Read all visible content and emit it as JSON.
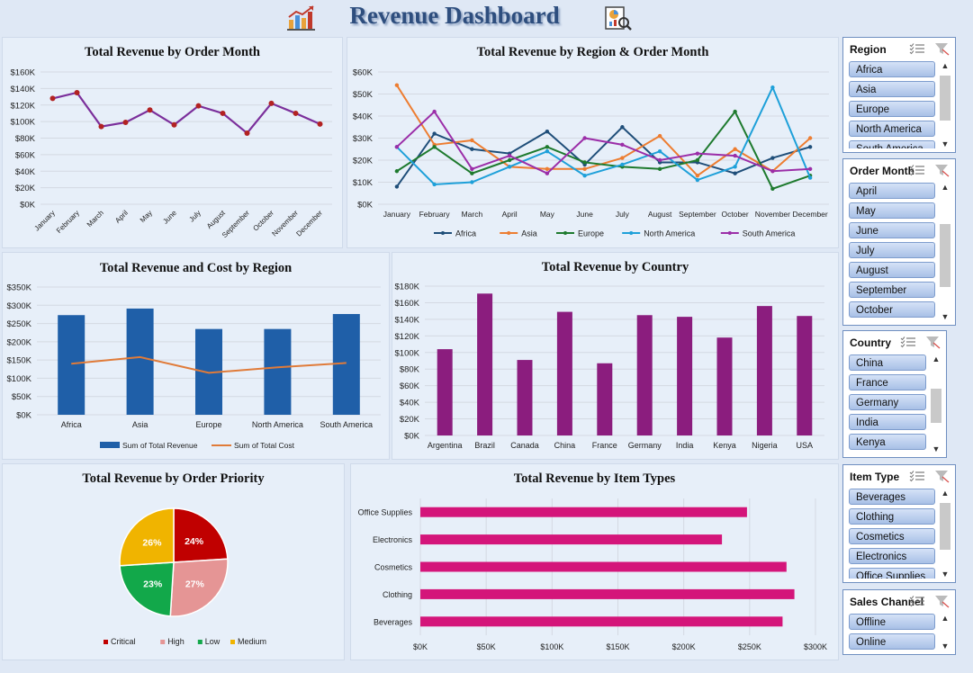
{
  "dashboard": {
    "title": "Revenue Dashboard",
    "left_icon": "growth-chart-icon",
    "right_icon": "analytics-report-icon"
  },
  "month_line": {
    "title": "Total Revenue by Order Month",
    "chart_data": {
      "type": "line",
      "categories": [
        "January",
        "February",
        "March",
        "April",
        "May",
        "June",
        "July",
        "August",
        "September",
        "October",
        "November",
        "December"
      ],
      "values": [
        128000,
        135000,
        94000,
        99000,
        114000,
        96000,
        119000,
        110000,
        86000,
        122000,
        110000,
        97000
      ],
      "ylim": [
        0,
        160000
      ],
      "yticks": [
        "$0K",
        "$20K",
        "$40K",
        "$60K",
        "$80K",
        "$100K",
        "$120K",
        "$140K",
        "$160K"
      ],
      "line_color": "#7b2f9b",
      "marker_color": "#b22222",
      "grid": true
    }
  },
  "region_month": {
    "title": "Total Revenue by Region & Order Month",
    "chart_data": {
      "type": "line",
      "categories": [
        "January",
        "February",
        "March",
        "April",
        "May",
        "June",
        "July",
        "August",
        "September",
        "October",
        "November",
        "December"
      ],
      "ylim": [
        0,
        60000
      ],
      "yticks": [
        "$0K",
        "$10K",
        "$20K",
        "$30K",
        "$40K",
        "$50K",
        "$60K"
      ],
      "legend_position": "bottom",
      "series": [
        {
          "name": "Africa",
          "color": "#1f4e79",
          "values": [
            8000,
            32000,
            25000,
            23000,
            33000,
            18000,
            35000,
            19000,
            19000,
            14000,
            21000,
            26000
          ]
        },
        {
          "name": "Asia",
          "color": "#ed7d31",
          "values": [
            54000,
            27000,
            29000,
            17000,
            16000,
            16000,
            21000,
            31000,
            13000,
            25000,
            15000,
            30000
          ]
        },
        {
          "name": "Europe",
          "color": "#1e7a2e",
          "values": [
            15000,
            26000,
            14000,
            20000,
            26000,
            19000,
            17000,
            16000,
            20000,
            42000,
            7000,
            13000
          ]
        },
        {
          "name": "North America",
          "color": "#1ea0d9",
          "values": [
            26000,
            9000,
            10000,
            17000,
            24000,
            13000,
            18000,
            24000,
            11000,
            17000,
            53000,
            12000
          ]
        },
        {
          "name": "South America",
          "color": "#9b2ea8",
          "values": [
            26000,
            42000,
            16000,
            22000,
            14000,
            30000,
            27000,
            20000,
            23000,
            22000,
            15000,
            16000
          ]
        }
      ]
    }
  },
  "region_rev_cost": {
    "title": "Total Revenue and Cost by Region",
    "chart_data": {
      "type": "bar",
      "categories": [
        "Africa",
        "Asia",
        "Europe",
        "North America",
        "South America"
      ],
      "ylim": [
        0,
        350000
      ],
      "yticks": [
        "$0K",
        "$50K",
        "$100K",
        "$150K",
        "$200K",
        "$250K",
        "$300K",
        "$350K"
      ],
      "legend_position": "bottom",
      "series": [
        {
          "name": "Sum of Total Revenue",
          "kind": "bar",
          "color": "#1f5fa8",
          "values": [
            273000,
            291000,
            235000,
            235000,
            276000
          ]
        },
        {
          "name": "Sum of Total Cost",
          "kind": "line",
          "color": "#e07b39",
          "values": [
            140000,
            158000,
            115000,
            130000,
            142000
          ]
        }
      ]
    }
  },
  "country": {
    "title": "Total Revenue by Country",
    "chart_data": {
      "type": "bar",
      "categories": [
        "Argentina",
        "Brazil",
        "Canada",
        "China",
        "France",
        "Germany",
        "India",
        "Kenya",
        "Nigeria",
        "USA"
      ],
      "values": [
        104000,
        171000,
        91000,
        149000,
        87000,
        145000,
        143000,
        118000,
        156000,
        144000
      ],
      "ylim": [
        0,
        180000
      ],
      "yticks": [
        "$0K",
        "$20K",
        "$40K",
        "$60K",
        "$80K",
        "$100K",
        "$120K",
        "$140K",
        "$160K",
        "$180K"
      ],
      "color": "#8b1d7e",
      "grid": true
    }
  },
  "priority": {
    "title": "Total Revenue by Order Priority",
    "chart_data": {
      "type": "pie",
      "legend_position": "bottom",
      "slices": [
        {
          "name": "Critical",
          "value": 24,
          "label": "24%",
          "color": "#c00000"
        },
        {
          "name": "High",
          "value": 27,
          "label": "27%",
          "color": "#e59595"
        },
        {
          "name": "Low",
          "value": 23,
          "label": "23%",
          "color": "#12a84a"
        },
        {
          "name": "Medium",
          "value": 26,
          "label": "26%",
          "color": "#f0b400"
        }
      ]
    }
  },
  "item_types": {
    "title": "Total Revenue by Item Types",
    "chart_data": {
      "type": "bar",
      "orientation": "horizontal",
      "categories": [
        "Office Supplies",
        "Electronics",
        "Cosmetics",
        "Clothing",
        "Beverages"
      ],
      "values": [
        248000,
        229000,
        278000,
        284000,
        275000
      ],
      "xlim": [
        0,
        300000
      ],
      "xticks": [
        "$0K",
        "$50K",
        "$100K",
        "$150K",
        "$200K",
        "$250K",
        "$300K"
      ],
      "color": "#d4157a",
      "grid": true
    }
  },
  "slicers": [
    {
      "id": "region",
      "title": "Region",
      "items": [
        "Africa",
        "Asia",
        "Europe",
        "North America",
        "South America"
      ]
    },
    {
      "id": "order-month",
      "title": "Order Month",
      "items": [
        "April",
        "May",
        "June",
        "July",
        "August",
        "September",
        "October"
      ]
    },
    {
      "id": "country",
      "title": "Country",
      "items": [
        "China",
        "France",
        "Germany",
        "India",
        "Kenya"
      ]
    },
    {
      "id": "item-type",
      "title": "Item Type",
      "items": [
        "Beverages",
        "Clothing",
        "Cosmetics",
        "Electronics",
        "Office Supplies"
      ]
    },
    {
      "id": "sales-channel",
      "title": "Sales Channel",
      "items": [
        "Offline",
        "Online"
      ]
    }
  ]
}
